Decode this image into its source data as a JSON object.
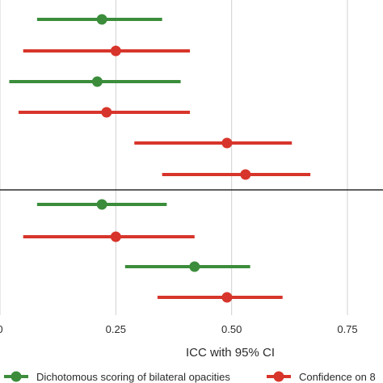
{
  "chart_data": {
    "type": "forest",
    "xlabel": "ICC with 95% CI",
    "xlim": [
      0.0,
      0.8
    ],
    "xticks": [
      0.0,
      0.25,
      0.5,
      0.75
    ],
    "xtick_labels": [
      "0",
      "0.25",
      "0.50",
      "0.75"
    ],
    "grid": true,
    "legend_position": "bottom",
    "series": [
      {
        "name": "Dichotomous scoring of bilateral opacities",
        "color": "#3b8d3b"
      },
      {
        "name": "Confidence on 8",
        "color": "#d7352b"
      }
    ],
    "panels": [
      {
        "rows": [
          {
            "series": 0,
            "estimate": 0.22,
            "lower": 0.08,
            "upper": 0.35
          },
          {
            "series": 1,
            "estimate": 0.25,
            "lower": 0.05,
            "upper": 0.41
          },
          {
            "series": 0,
            "estimate": 0.21,
            "lower": 0.02,
            "upper": 0.39
          },
          {
            "series": 1,
            "estimate": 0.23,
            "lower": 0.04,
            "upper": 0.41
          },
          {
            "series": 1,
            "estimate": 0.49,
            "lower": 0.29,
            "upper": 0.63
          },
          {
            "series": 1,
            "estimate": 0.53,
            "lower": 0.35,
            "upper": 0.67
          }
        ]
      },
      {
        "rows": [
          {
            "series": 0,
            "estimate": 0.22,
            "lower": 0.08,
            "upper": 0.36
          },
          {
            "series": 1,
            "estimate": 0.25,
            "lower": 0.05,
            "upper": 0.42
          },
          {
            "series": 0,
            "estimate": 0.42,
            "lower": 0.27,
            "upper": 0.54
          },
          {
            "series": 1,
            "estimate": 0.49,
            "lower": 0.34,
            "upper": 0.61
          }
        ]
      }
    ]
  }
}
